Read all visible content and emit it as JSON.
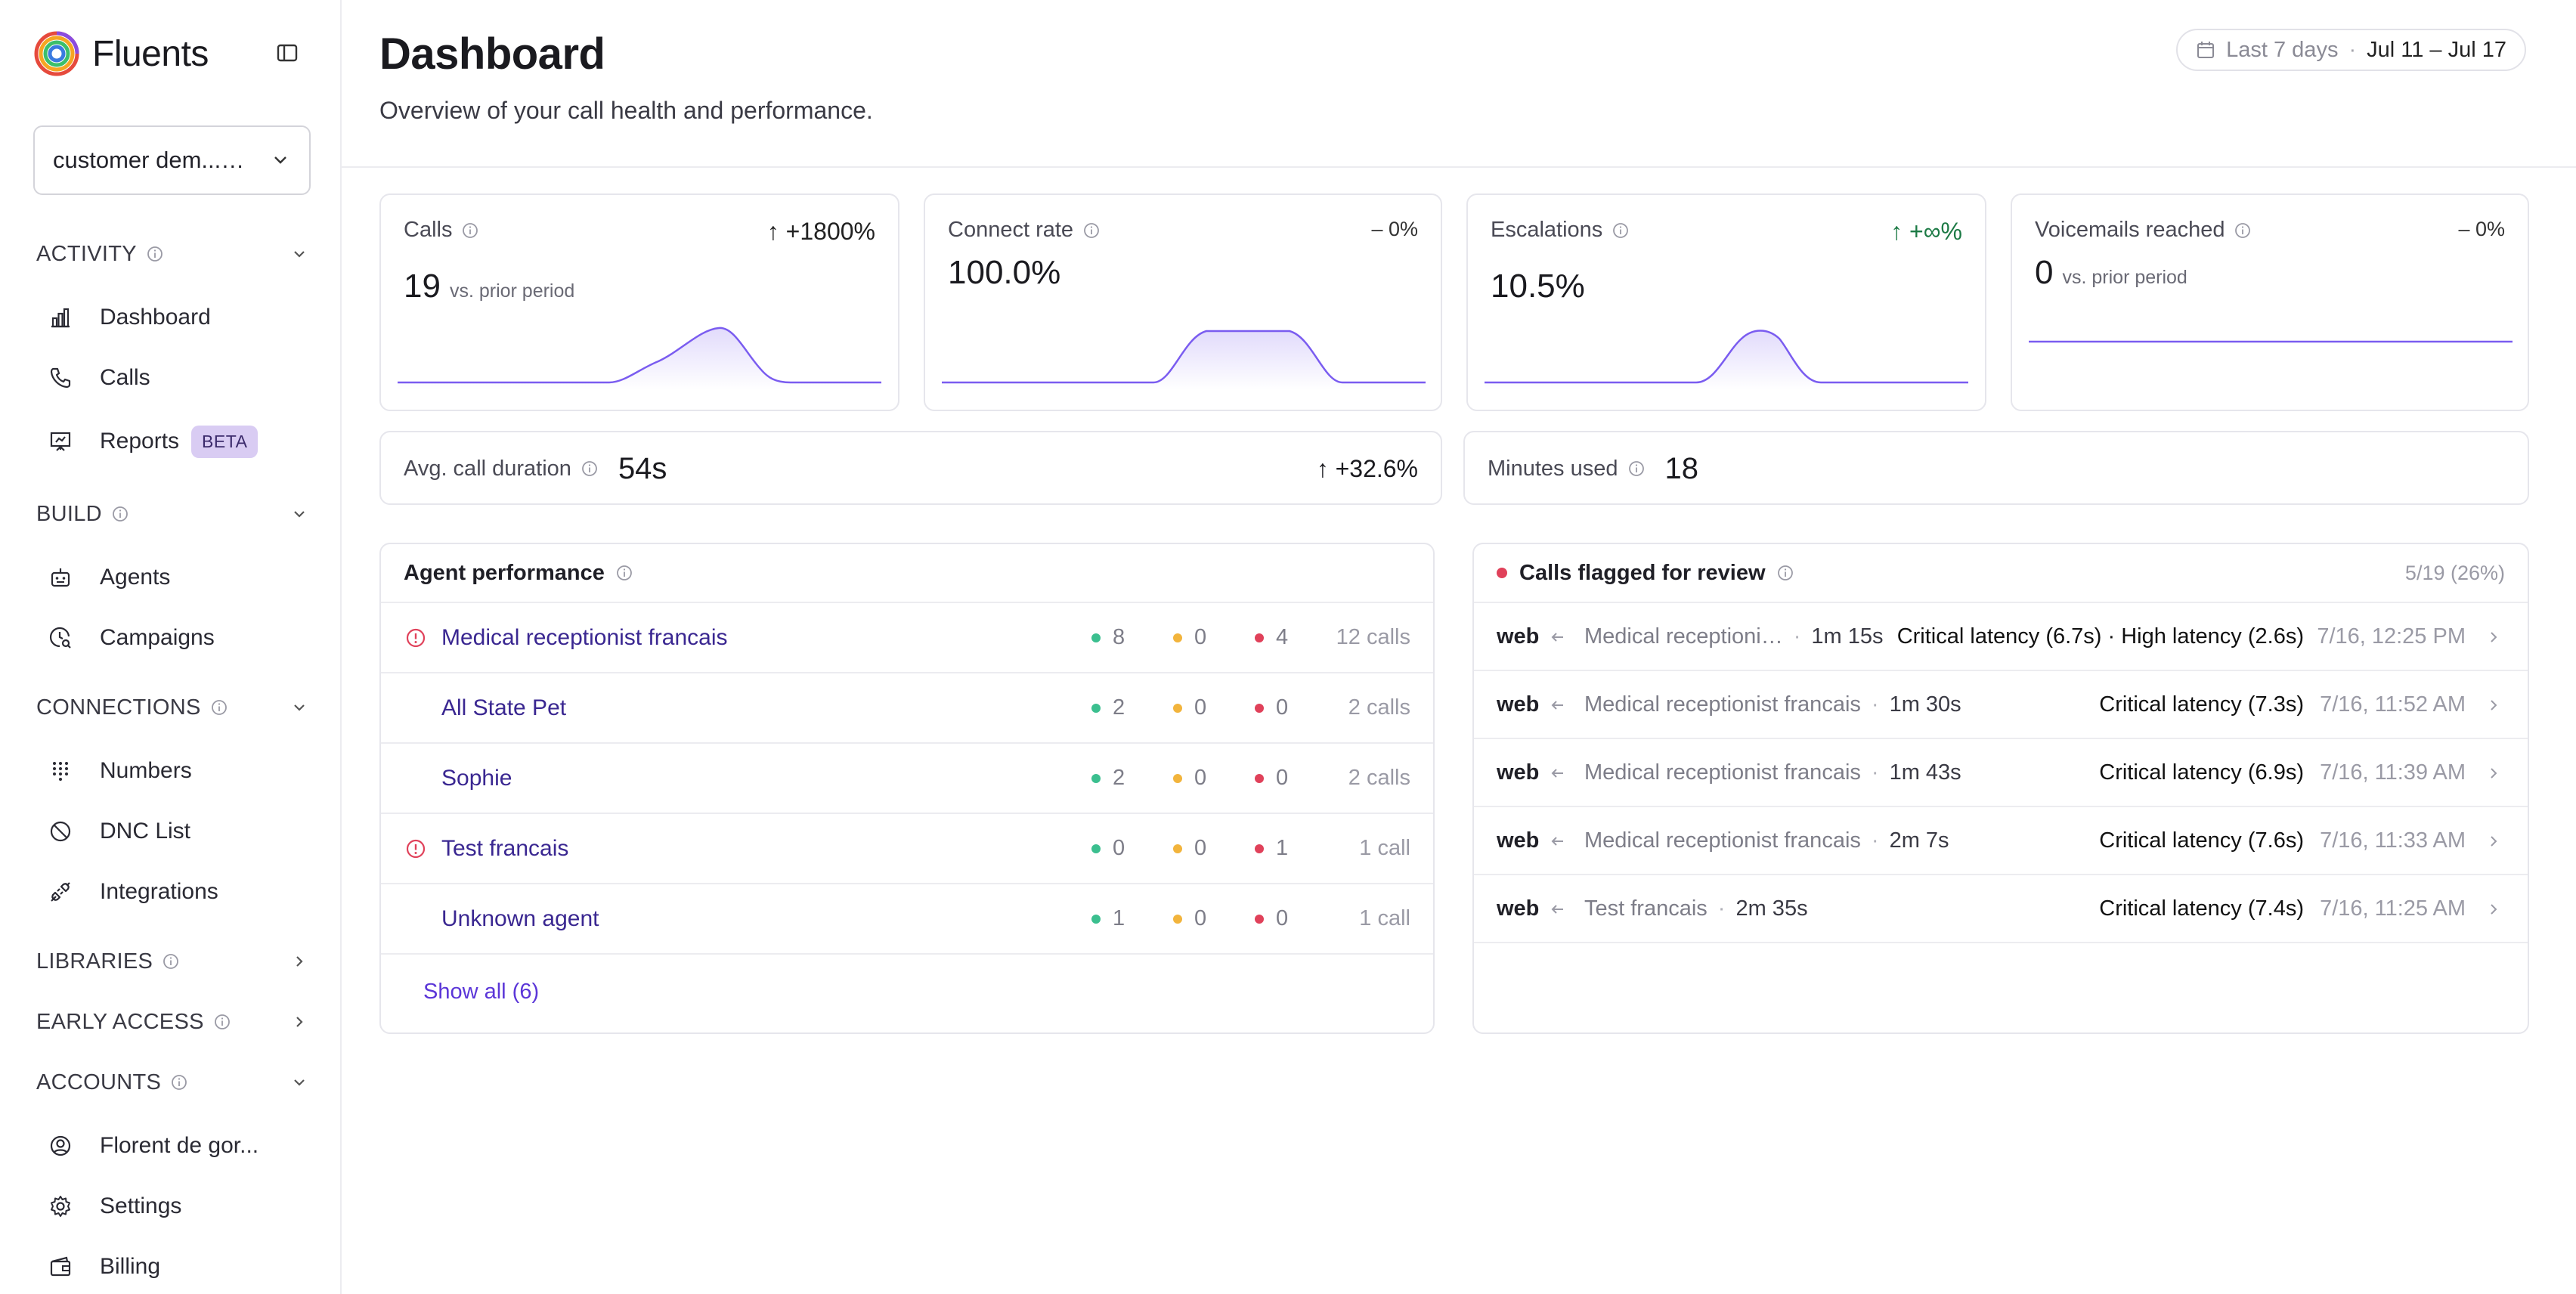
{
  "brand": {
    "name": "Fluents"
  },
  "workspace": {
    "label": "customer dem...…"
  },
  "sidebar": {
    "sections": {
      "activity": "ACTIVITY",
      "build": "BUILD",
      "connections": "CONNECTIONS",
      "libraries": "LIBRARIES",
      "early_access": "EARLY ACCESS",
      "accounts": "ACCOUNTS"
    },
    "items": {
      "dashboard": "Dashboard",
      "calls": "Calls",
      "reports": "Reports",
      "reports_badge": "BETA",
      "agents": "Agents",
      "campaigns": "Campaigns",
      "numbers": "Numbers",
      "dnc": "DNC List",
      "integrations": "Integrations",
      "account": "Florent de gor...",
      "settings": "Settings",
      "billing": "Billing"
    }
  },
  "header": {
    "title": "Dashboard",
    "subtitle": "Overview of your call health and performance.",
    "range_label": "Last 7 days",
    "range_sep": "·",
    "range": "Jul 11 – Jul 17"
  },
  "stats": {
    "calls": {
      "title": "Calls",
      "delta": "↑ +1800%",
      "value": "19",
      "vs": "vs. prior period"
    },
    "connect": {
      "title": "Connect rate",
      "delta": "– 0%",
      "value": "100.0%"
    },
    "escalations": {
      "title": "Escalations",
      "delta": "↑ +∞%",
      "value": "10.5%"
    },
    "voicemails": {
      "title": "Voicemails reached",
      "delta": "– 0%",
      "value": "0",
      "vs": "vs. prior period"
    },
    "avg_duration": {
      "title": "Avg. call duration",
      "value": "54s",
      "delta": "↑ +32.6%"
    },
    "minutes": {
      "title": "Minutes used",
      "value": "18"
    }
  },
  "colors": {
    "accent": "#5b36d8",
    "green": "#3bbf8f",
    "yellow": "#f2b43c",
    "red": "#e0415a",
    "spark": "#7a5cf0"
  },
  "agent_performance": {
    "title": "Agent performance",
    "rows": [
      {
        "name": "Medical receptionist francais",
        "warning": true,
        "green": "8",
        "yellow": "0",
        "red": "4",
        "calls": "12 calls"
      },
      {
        "name": "All State Pet",
        "warning": false,
        "green": "2",
        "yellow": "0",
        "red": "0",
        "calls": "2 calls"
      },
      {
        "name": "Sophie",
        "warning": false,
        "green": "2",
        "yellow": "0",
        "red": "0",
        "calls": "2 calls"
      },
      {
        "name": "Test francais",
        "warning": true,
        "green": "0",
        "yellow": "0",
        "red": "1",
        "calls": "1 call"
      },
      {
        "name": "Unknown agent",
        "warning": false,
        "green": "1",
        "yellow": "0",
        "red": "0",
        "calls": "1 call"
      }
    ],
    "show_all": "Show all (6)"
  },
  "flagged": {
    "title": "Calls flagged for review",
    "count": "5/19 (26%)",
    "rows": [
      {
        "channel": "web",
        "agent": "Medical receptioni…",
        "duration": "1m 15s",
        "issue": "Critical latency (6.7s) · High latency (2.6s)",
        "time": "7/16, 12:25 PM"
      },
      {
        "channel": "web",
        "agent": "Medical receptionist francais",
        "duration": "1m 30s",
        "issue": "Critical latency (7.3s)",
        "time": "7/16, 11:52 AM"
      },
      {
        "channel": "web",
        "agent": "Medical receptionist francais",
        "duration": "1m 43s",
        "issue": "Critical latency (6.9s)",
        "time": "7/16, 11:39 AM"
      },
      {
        "channel": "web",
        "agent": "Medical receptionist francais",
        "duration": "2m 7s",
        "issue": "Critical latency (7.6s)",
        "time": "7/16, 11:33 AM"
      },
      {
        "channel": "web",
        "agent": "Test francais",
        "duration": "2m 35s",
        "issue": "Critical latency (7.4s)",
        "time": "7/16, 11:25 AM"
      }
    ]
  }
}
